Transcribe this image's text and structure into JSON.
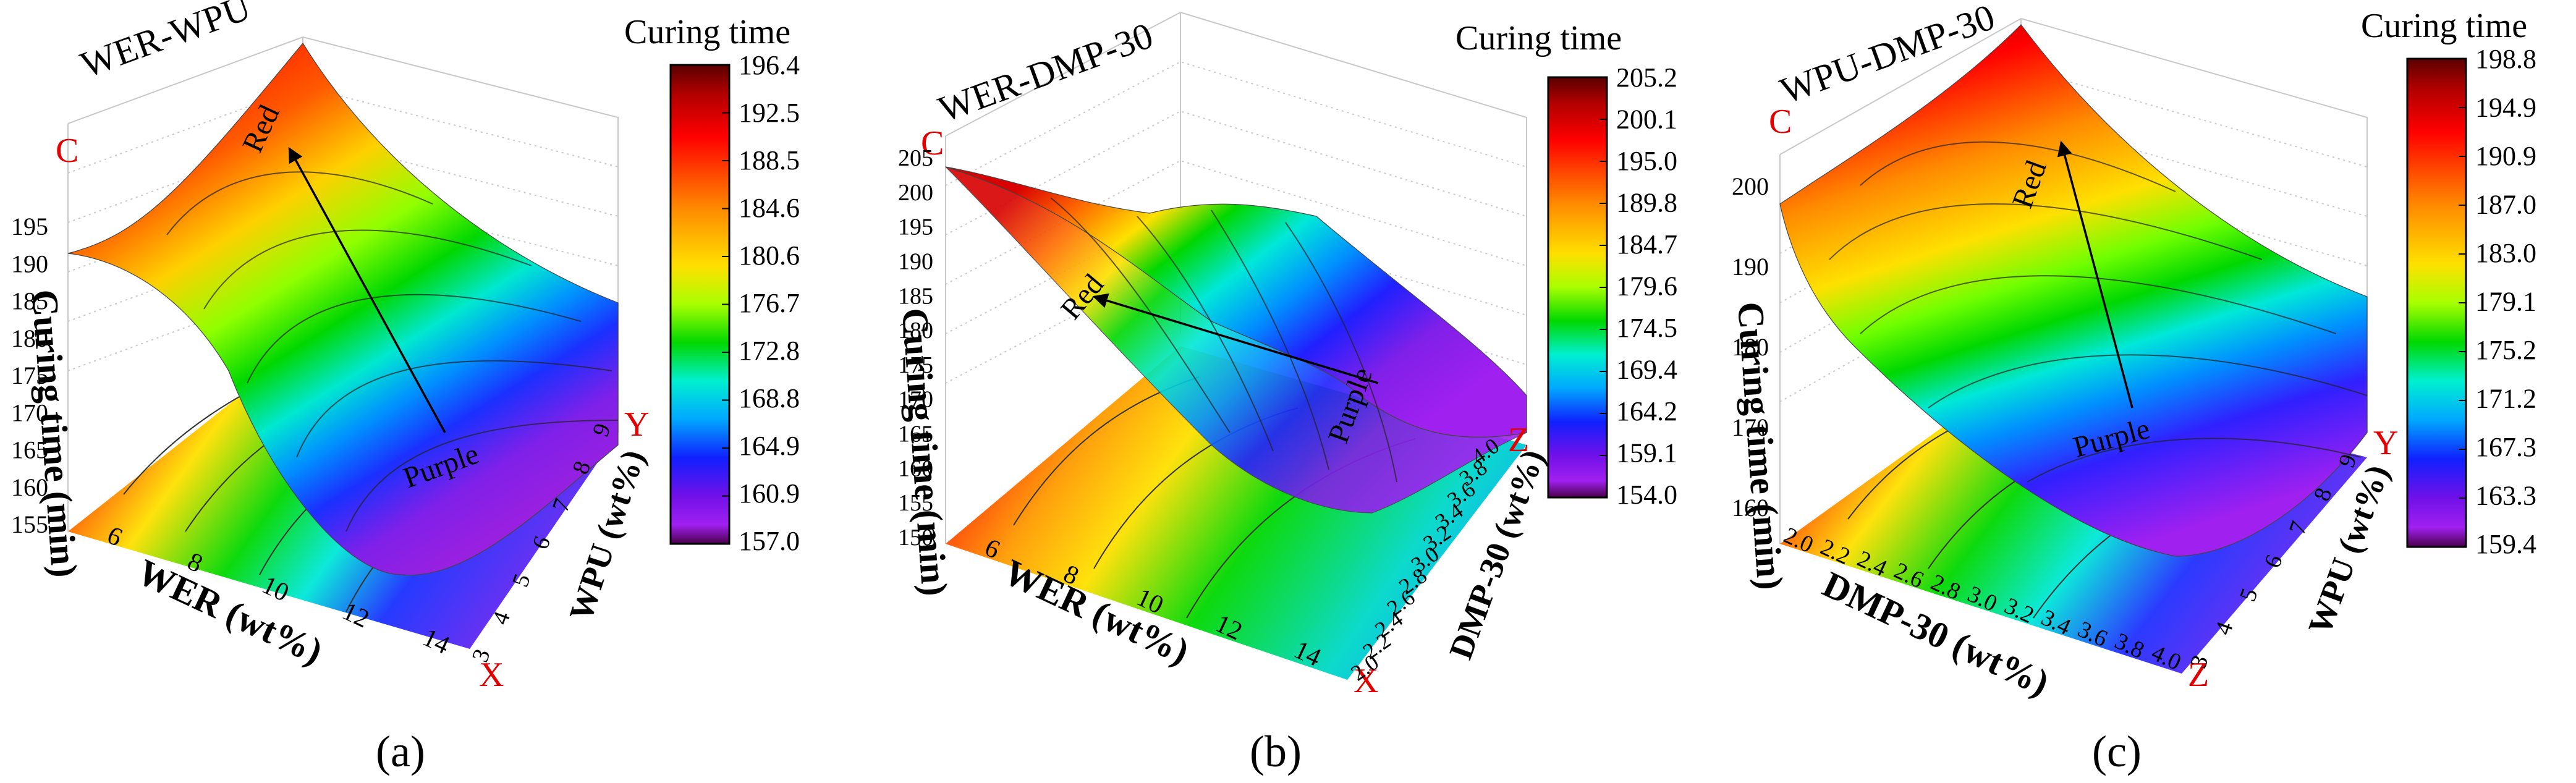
{
  "figure": {
    "panels": [
      {
        "label": "(a)",
        "title": "WER-WPU",
        "corner_letter": "C",
        "x_axis": {
          "letter": "X",
          "title": "WER (wt%)",
          "ticks": [
            "6",
            "8",
            "10",
            "12",
            "14"
          ]
        },
        "y_axis": {
          "letter": "Y",
          "title": "WPU (wt%)",
          "ticks": [
            "3",
            "4",
            "5",
            "6",
            "7",
            "8",
            "9"
          ]
        },
        "z_axis": {
          "title": "Curing time (min)",
          "ticks": [
            "155",
            "160",
            "165",
            "170",
            "175",
            "180",
            "185",
            "190",
            "195"
          ]
        },
        "arrow": {
          "start_label": "Purple",
          "end_label": "Red"
        }
      },
      {
        "label": "(b)",
        "title": "WER-DMP-30",
        "corner_letter": "C",
        "x_axis": {
          "letter": "X",
          "title": "WER (wt%)",
          "ticks": [
            "6",
            "8",
            "10",
            "12",
            "14"
          ]
        },
        "y_axis": {
          "letter": "Z",
          "title": "DMP-30 (wt%)",
          "ticks": [
            "2.0",
            "2.2",
            "2.4",
            "2.6",
            "2.8",
            "3.0",
            "3.2",
            "3.4",
            "3.6",
            "3.8",
            "4.0"
          ]
        },
        "z_axis": {
          "title": "Curing time (min)",
          "ticks": [
            "150",
            "155",
            "160",
            "165",
            "170",
            "175",
            "180",
            "185",
            "190",
            "195",
            "200",
            "205"
          ]
        },
        "arrow": {
          "start_label": "Purple",
          "end_label": "Red"
        }
      },
      {
        "label": "(c)",
        "title": "WPU-DMP-30",
        "corner_letter": "C",
        "x_axis": {
          "letter": "Z",
          "title": "DMP-30 (wt%)",
          "ticks": [
            "2.0",
            "2.2",
            "2.4",
            "2.6",
            "2.8",
            "3.0",
            "3.2",
            "3.4",
            "3.6",
            "3.8",
            "4.0"
          ]
        },
        "y_axis": {
          "letter": "Y",
          "title": "WPU (wt%)",
          "ticks": [
            "3",
            "4",
            "5",
            "6",
            "7",
            "8",
            "9"
          ]
        },
        "z_axis": {
          "title": "Curing time (min)",
          "ticks": [
            "160",
            "170",
            "180",
            "190",
            "200"
          ]
        },
        "arrow": {
          "start_label": "Purple",
          "end_label": "Red"
        }
      }
    ],
    "colorbars": [
      {
        "title": "Curing time",
        "ticks": [
          "196.4",
          "192.5",
          "188.5",
          "184.6",
          "180.6",
          "176.7",
          "172.8",
          "168.8",
          "164.9",
          "160.9",
          "157.0"
        ]
      },
      {
        "title": "Curing time",
        "ticks": [
          "205.2",
          "200.1",
          "195.0",
          "189.8",
          "184.7",
          "179.6",
          "174.5",
          "169.4",
          "164.2",
          "159.1",
          "154.0"
        ]
      },
      {
        "title": "Curing time",
        "ticks": [
          "198.8",
          "194.9",
          "190.9",
          "187.0",
          "183.0",
          "179.1",
          "175.2",
          "171.2",
          "167.3",
          "163.3",
          "159.4"
        ]
      }
    ],
    "colormap": [
      "#5a0000",
      "#a00000",
      "#ff0000",
      "#ff7a00",
      "#ffd800",
      "#b8ff00",
      "#00d800",
      "#00f0c8",
      "#00a0ff",
      "#1020ff",
      "#6010e0",
      "#a020f0",
      "#5a005a"
    ],
    "accent_red": "#e30000"
  },
  "chart_data": [
    {
      "type": "surface",
      "title": "WER-WPU",
      "xlabel": "WER (wt%)",
      "ylabel": "WPU (wt%)",
      "zlabel": "Curing time (min)",
      "xlim": [
        5,
        15
      ],
      "ylim": [
        3,
        9
      ],
      "zlim": [
        155,
        197
      ],
      "colorbar_range": [
        157.0,
        196.4
      ],
      "surface_max": 196.4,
      "surface_min": 157.0
    },
    {
      "type": "surface",
      "title": "WER-DMP-30",
      "xlabel": "WER (wt%)",
      "ylabel": "DMP-30 (wt%)",
      "zlabel": "Curing time (min)",
      "xlim": [
        5,
        15
      ],
      "ylim": [
        2.0,
        4.0
      ],
      "zlim": [
        150,
        205
      ],
      "colorbar_range": [
        154.0,
        205.2
      ],
      "surface_max": 205.2,
      "surface_min": 154.0
    },
    {
      "type": "surface",
      "title": "WPU-DMP-30",
      "xlabel": "DMP-30 (wt%)",
      "ylabel": "WPU (wt%)",
      "zlabel": "Curing time (min)",
      "xlim": [
        2.0,
        4.0
      ],
      "ylim": [
        3,
        9
      ],
      "zlim": [
        160,
        200
      ],
      "colorbar_range": [
        159.4,
        198.8
      ],
      "surface_max": 198.8,
      "surface_min": 159.4
    }
  ]
}
